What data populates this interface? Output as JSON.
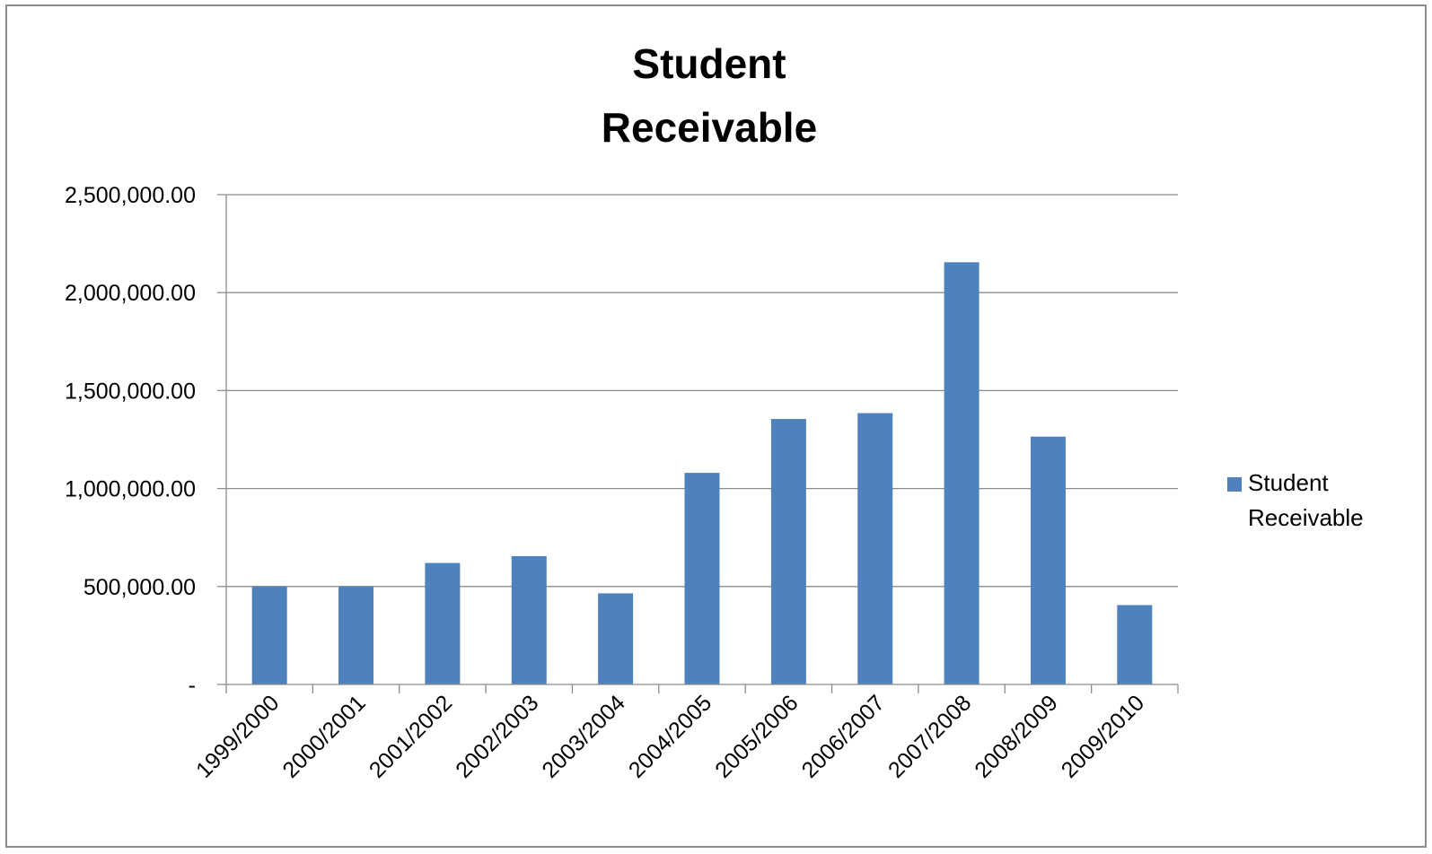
{
  "chart_data": {
    "type": "bar",
    "title": [
      "Student",
      "Receivable"
    ],
    "categories": [
      "1999/2000",
      "2000/2001",
      "2001/2002",
      "2002/2003",
      "2003/2004",
      "2004/2005",
      "2005/2006",
      "2006/2007",
      "2007/2008",
      "2008/2009",
      "2009/2010"
    ],
    "series": [
      {
        "name": [
          "Student",
          "Receivable"
        ],
        "color": "#4f81bd",
        "values": [
          500000,
          500000,
          620000,
          655000,
          465000,
          1080000,
          1355000,
          1385000,
          2155000,
          1265000,
          405000
        ]
      }
    ],
    "ylim": [
      0,
      2500000
    ],
    "y_ticks": [
      {
        "value": 0,
        "label": "-"
      },
      {
        "value": 500000,
        "label": "500,000.00"
      },
      {
        "value": 1000000,
        "label": "1,000,000.00"
      },
      {
        "value": 1500000,
        "label": "1,500,000.00"
      },
      {
        "value": 2000000,
        "label": "2,000,000.00"
      },
      {
        "value": 2500000,
        "label": "2,500,000.00"
      }
    ],
    "grid": true,
    "legend_position": "right",
    "colors": {
      "gridline": "#8c8c8c",
      "axis": "#8c8c8c",
      "frame": "#8c8c8c"
    }
  }
}
